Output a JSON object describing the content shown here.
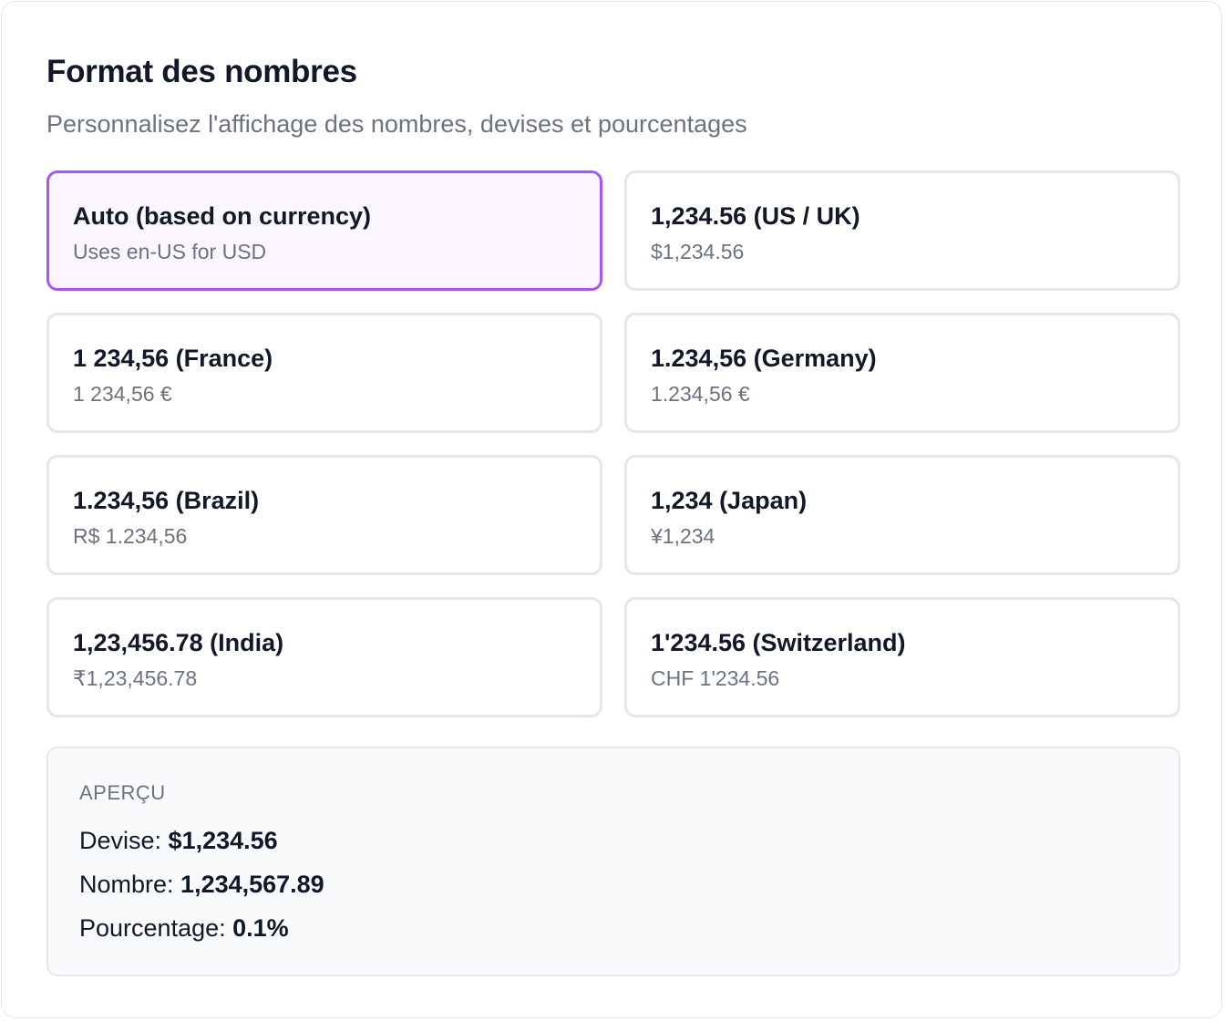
{
  "header": {
    "title": "Format des nombres",
    "subtitle": "Personnalisez l'affichage des nombres, devises et pourcentages"
  },
  "options": [
    {
      "label": "Auto (based on currency)",
      "example": "Uses en-US for USD",
      "selected": true
    },
    {
      "label": "1,234.56 (US / UK)",
      "example": "$1,234.56",
      "selected": false
    },
    {
      "label": "1 234,56 (France)",
      "example": "1 234,56 €",
      "selected": false
    },
    {
      "label": "1.234,56 (Germany)",
      "example": "1.234,56 €",
      "selected": false
    },
    {
      "label": "1.234,56 (Brazil)",
      "example": "R$ 1.234,56",
      "selected": false
    },
    {
      "label": "1,234 (Japan)",
      "example": "¥1,234",
      "selected": false
    },
    {
      "label": "1,23,456.78 (India)",
      "example": "₹1,23,456.78",
      "selected": false
    },
    {
      "label": "1'234.56 (Switzerland)",
      "example": "CHF 1'234.56",
      "selected": false
    }
  ],
  "preview": {
    "heading": "APERÇU",
    "currency_label": "Devise:",
    "currency_value": "$1,234.56",
    "number_label": "Nombre:",
    "number_value": "1,234,567.89",
    "percent_label": "Pourcentage:",
    "percent_value": "0.1%"
  },
  "colors": {
    "accent": "#a855f7",
    "selected_bg": "#faf5ff",
    "border": "#e5e7eb",
    "muted_text": "#6b7280",
    "text": "#111827",
    "preview_bg": "#f8fafc"
  }
}
